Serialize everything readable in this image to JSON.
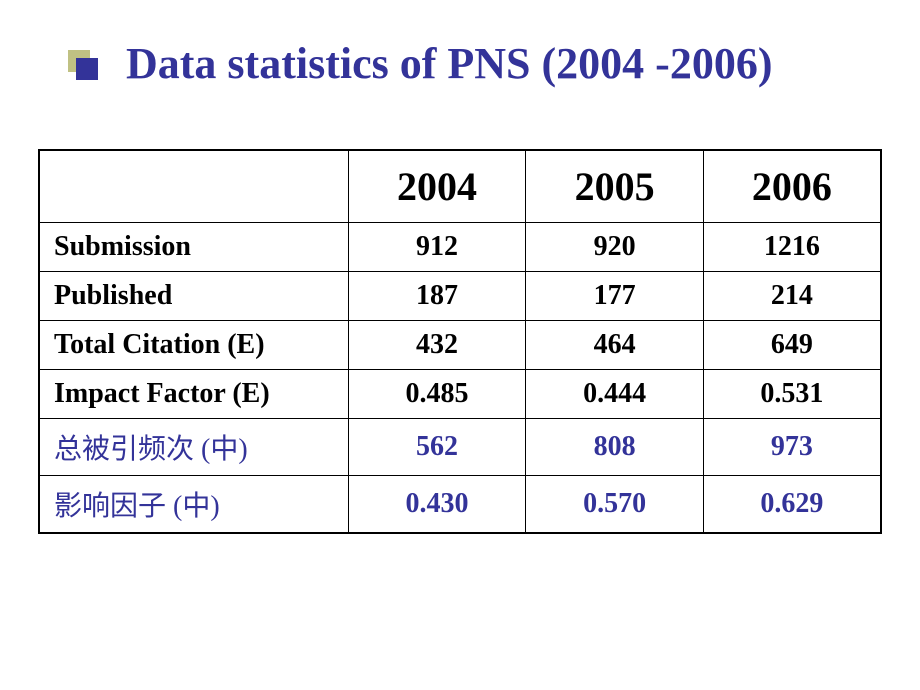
{
  "title": "Data statistics of PNS (2004 -2006)",
  "colors": {
    "title_color": "#333399",
    "bullet_outer": "#c0c183",
    "bullet_inner": "#333399",
    "text_black": "#000000",
    "text_blue": "#333399",
    "background": "#ffffff",
    "border": "#000000"
  },
  "table": {
    "headers": [
      "",
      "2004",
      "2005",
      "2006"
    ],
    "rows": [
      {
        "label": "Submission",
        "values": [
          "912",
          "920",
          "1216"
        ],
        "style": "black"
      },
      {
        "label": "Published",
        "values": [
          "187",
          "177",
          "214"
        ],
        "style": "black"
      },
      {
        "label": "Total Citation (E)",
        "values": [
          "432",
          "464",
          "649"
        ],
        "style": "black"
      },
      {
        "label": "Impact Factor (E)",
        "values": [
          "0.485",
          "0.444",
          "0.531"
        ],
        "style": "black"
      },
      {
        "label": "总被引频次 (中)",
        "values": [
          "562",
          "808",
          "973"
        ],
        "style": "blue"
      },
      {
        "label": "影响因子 (中)",
        "values": [
          "0.430",
          "0.570",
          "0.629"
        ],
        "style": "blue"
      }
    ]
  }
}
